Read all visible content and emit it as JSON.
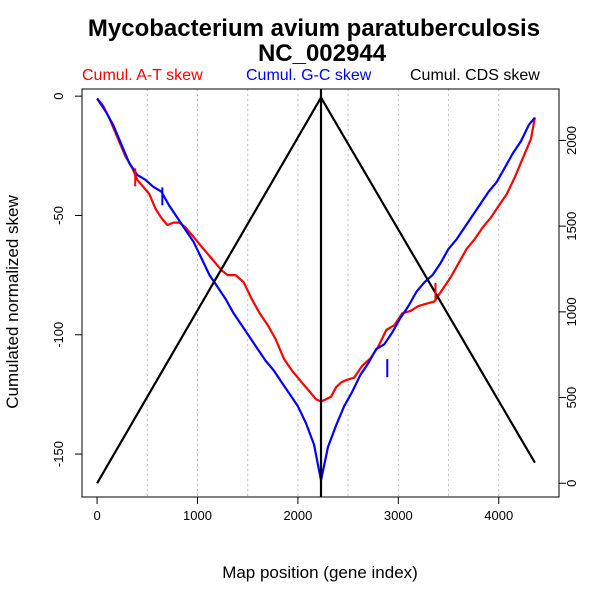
{
  "chart_data": {
    "type": "line",
    "title_line1": "Mycobacterium avium paratuberculosis",
    "title_line2": "NC_002944",
    "xlabel": "Map position (gene index)",
    "ylabel": "Cumulated normalized skew",
    "xlim": [
      -150,
      4600
    ],
    "ylim": [
      -168,
      3
    ],
    "y2lim": [
      -80,
      2300
    ],
    "x_ticks": [
      0,
      1000,
      2000,
      3000,
      4000
    ],
    "y_ticks": [
      0,
      -50,
      -100,
      -150
    ],
    "y2_ticks": [
      0,
      500,
      1000,
      1500,
      2000
    ],
    "vgrid": [
      500,
      1000,
      1500,
      2000,
      2500,
      3000,
      3500,
      4000
    ],
    "colors": {
      "at": "#ff0000",
      "gc": "#0000ff",
      "cds": "#000000",
      "grid": "#bebebe"
    },
    "legend": [
      "Cumul. A-T skew",
      "Cumul. G-C skew",
      "Cumul. CDS skew"
    ],
    "series": [
      {
        "name": "Cumul. A-T skew",
        "color": "#ff0000",
        "axis": "left",
        "x": [
          0,
          60,
          120,
          200,
          280,
          350,
          400,
          460,
          520,
          580,
          640,
          700,
          760,
          820,
          880,
          940,
          1000,
          1060,
          1120,
          1180,
          1240,
          1300,
          1380,
          1460,
          1540,
          1620,
          1700,
          1780,
          1860,
          1940,
          2000,
          2060,
          2120,
          2180,
          2230,
          2280,
          2330,
          2380,
          2430,
          2480,
          2560,
          2640,
          2720,
          2800,
          2880,
          2960,
          3040,
          3120,
          3200,
          3280,
          3360,
          3440,
          3520,
          3600,
          3680,
          3760,
          3840,
          3920,
          4000,
          4080,
          4160,
          4240,
          4320,
          4360
        ],
        "values": [
          -1,
          -4,
          -9,
          -17,
          -25,
          -30,
          -35,
          -38,
          -41,
          -47,
          -51,
          -54,
          -53,
          -53,
          -55,
          -58,
          -61,
          -64,
          -67,
          -70,
          -73,
          -75,
          -75,
          -78,
          -85,
          -91,
          -96,
          -102,
          -110,
          -115,
          -118,
          -121,
          -124,
          -127,
          -128,
          -127,
          -126,
          -122,
          -120,
          -119,
          -118,
          -113,
          -110,
          -105,
          -98,
          -96,
          -91,
          -90,
          -88,
          -87,
          -86,
          -81,
          -76,
          -70,
          -64,
          -60,
          -55,
          -51,
          -46,
          -41,
          -34,
          -26,
          -18,
          -9
        ]
      },
      {
        "name": "Cumul. G-C skew",
        "color": "#0000ff",
        "axis": "left",
        "x": [
          0,
          80,
          160,
          240,
          320,
          400,
          480,
          560,
          640,
          720,
          800,
          880,
          960,
          1040,
          1120,
          1200,
          1280,
          1360,
          1440,
          1520,
          1600,
          1680,
          1760,
          1840,
          1920,
          2000,
          2080,
          2160,
          2230,
          2300,
          2380,
          2460,
          2540,
          2620,
          2700,
          2780,
          2860,
          2940,
          3020,
          3100,
          3180,
          3260,
          3340,
          3420,
          3500,
          3580,
          3660,
          3740,
          3820,
          3900,
          3980,
          4060,
          4140,
          4220,
          4300,
          4360
        ],
        "values": [
          -1,
          -6,
          -12,
          -20,
          -28,
          -33,
          -35,
          -38,
          -40,
          -46,
          -51,
          -56,
          -61,
          -68,
          -75,
          -80,
          -85,
          -91,
          -96,
          -101,
          -106,
          -111,
          -115,
          -120,
          -125,
          -130,
          -137,
          -146,
          -161,
          -147,
          -138,
          -130,
          -124,
          -117,
          -112,
          -106,
          -104,
          -99,
          -93,
          -88,
          -82,
          -78,
          -75,
          -70,
          -64,
          -60,
          -55,
          -50,
          -45,
          -40,
          -36,
          -30,
          -24,
          -19,
          -12,
          -9
        ]
      },
      {
        "name": "Cumul. CDS skew",
        "color": "#000000",
        "axis": "right",
        "x": [
          0,
          2230,
          4360
        ],
        "values": [
          0,
          2250,
          120
        ]
      }
    ],
    "markers": [
      {
        "x": 380,
        "y": -34,
        "color": "#ff0000"
      },
      {
        "x": 650,
        "y": -42,
        "color": "#0000ff"
      },
      {
        "x": 2890,
        "y": -114,
        "color": "#0000ff"
      },
      {
        "x": 3370,
        "y": -82,
        "color": "#ff0000"
      },
      {
        "x": 2230,
        "y": -70,
        "color": "#000000"
      }
    ]
  }
}
